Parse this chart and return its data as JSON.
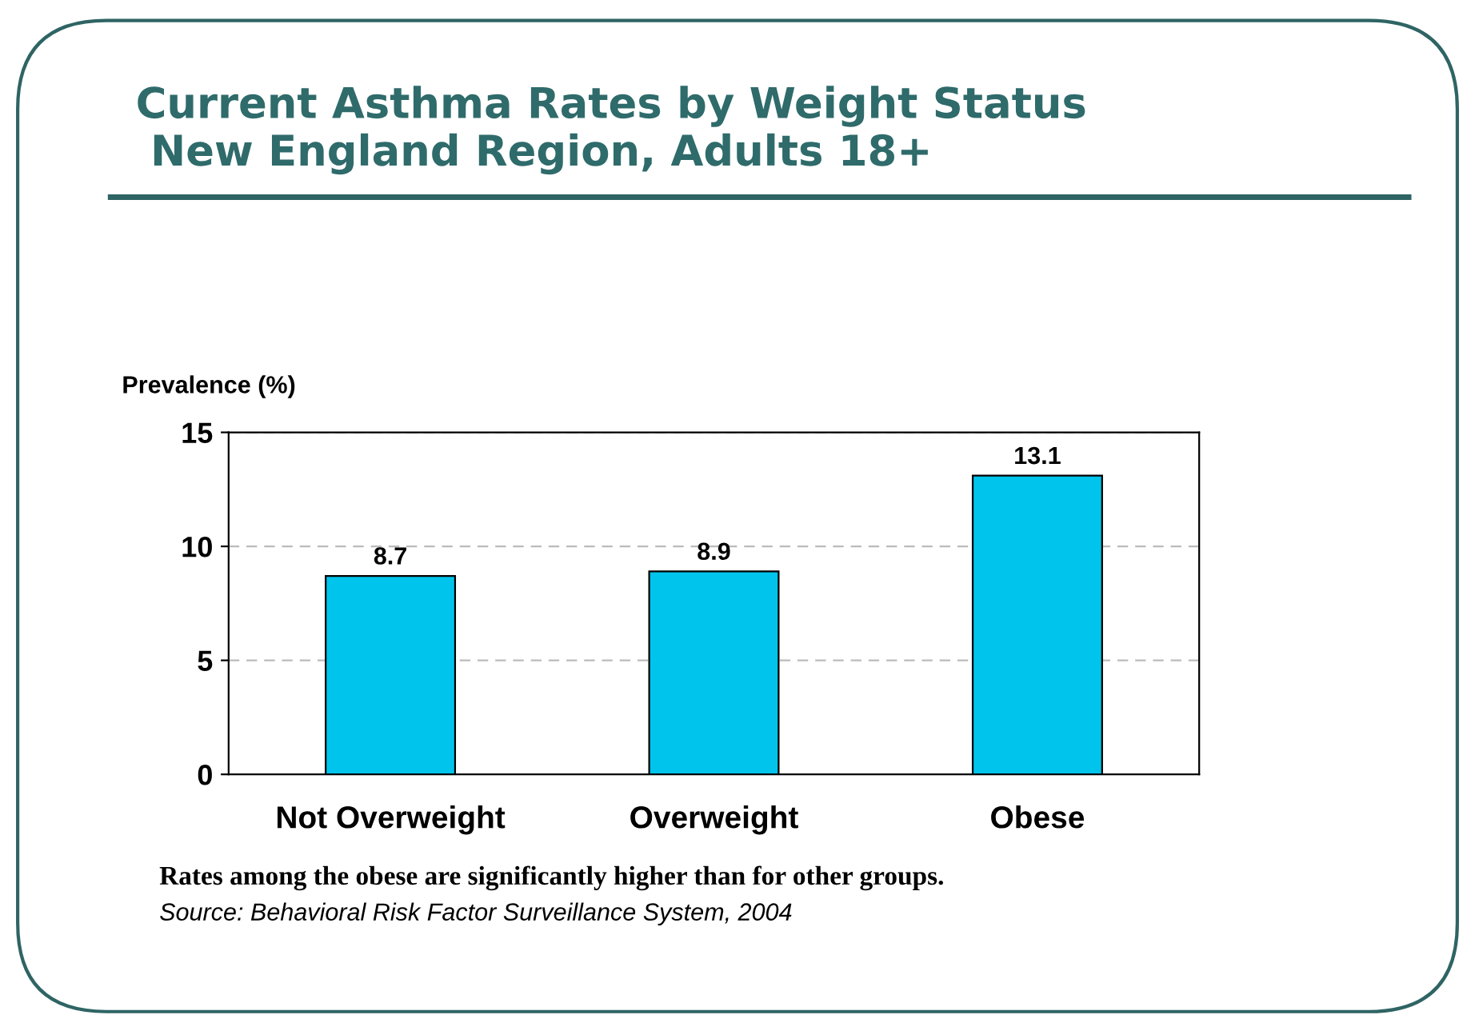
{
  "chart_data": {
    "type": "bar",
    "title": "Current Asthma Rates by Weight Status\n New England Region, Adults 18+",
    "ylabel": "Prevalence (%)",
    "categories": [
      "Not Overweight",
      "Overweight",
      "Obese"
    ],
    "values": [
      8.7,
      8.9,
      13.1
    ],
    "color": "#00c4ec",
    "ylim": [
      0,
      15
    ],
    "yticks": [
      0,
      5,
      10,
      15
    ],
    "grid": "y",
    "data_labels": true,
    "annotations": [
      "Rates among the obese are significantly higher than for other groups.",
      "Source: Behavioral Risk Factor Surveillance System, 2004"
    ]
  }
}
